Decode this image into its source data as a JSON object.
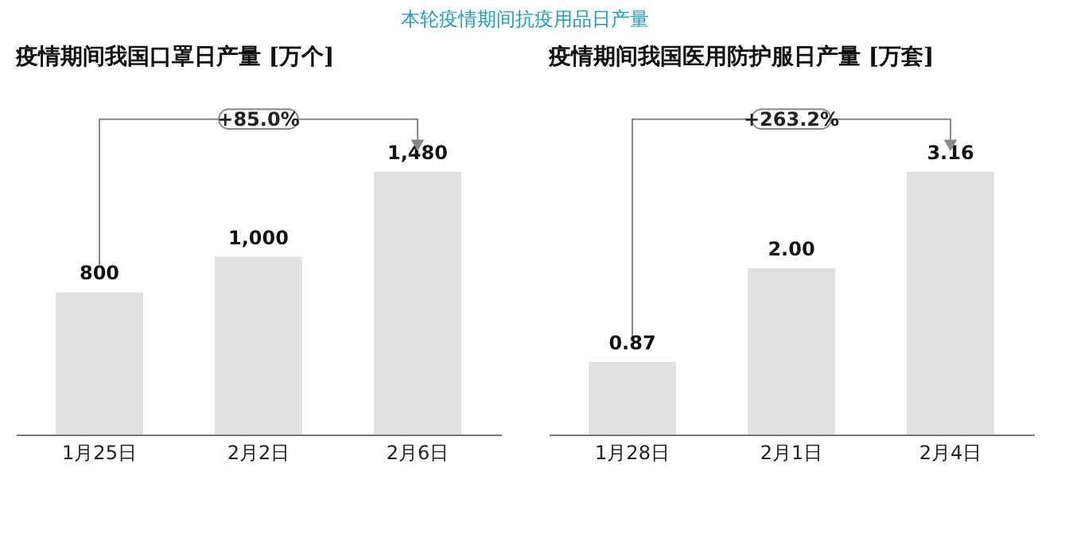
{
  "chart_data": [
    {
      "type": "other",
      "title": "本轮疫情期间抗疫用品日产量"
    },
    {
      "type": "bar",
      "title": "疫情期间我国口罩日产量 [万个]",
      "categories": [
        "1月25日",
        "2月2日",
        "2月6日"
      ],
      "values": [
        800,
        1000,
        1480
      ],
      "value_labels": [
        "800",
        "1,000",
        "1,480"
      ],
      "color": "#e0e0e0",
      "annotations": [
        "+85.0%"
      ]
    },
    {
      "type": "bar",
      "title": "疫情期间我国医用防护服日产量 [万套]",
      "categories": [
        "1月28日",
        "2月1日",
        "2月4日"
      ],
      "values": [
        0.87,
        2.0,
        3.16
      ],
      "value_labels": [
        "0.87",
        "2.00",
        "3.16"
      ],
      "color": "#e0e0e0",
      "annotations": [
        "+263.2%"
      ]
    }
  ]
}
